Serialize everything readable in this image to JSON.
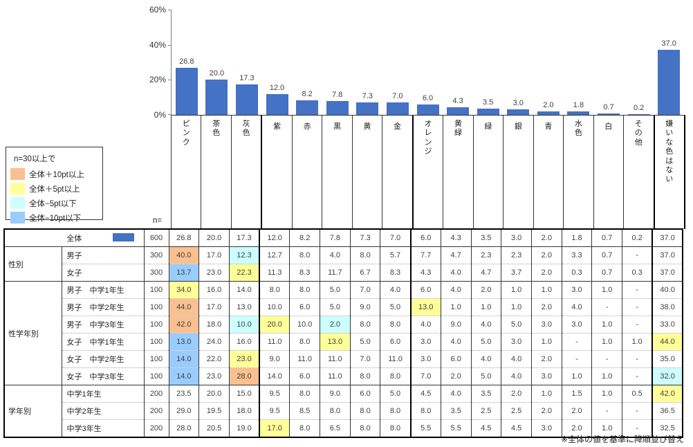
{
  "chart_data": {
    "type": "bar",
    "title": "",
    "xlabel": "",
    "ylabel": "",
    "categories": [
      "ピンク",
      "茶色",
      "灰色",
      "紫",
      "赤",
      "黒",
      "黄",
      "金",
      "オレンジ",
      "黄緑",
      "緑",
      "銀",
      "青",
      "水色",
      "白",
      "その他",
      "嫌いな色はない"
    ],
    "values": [
      26.8,
      20.0,
      17.3,
      12.0,
      8.2,
      7.8,
      7.3,
      7.0,
      6.0,
      4.3,
      3.5,
      3.0,
      2.0,
      1.8,
      0.7,
      0.2,
      37.0
    ],
    "value_labels": [
      "26.8",
      "20.0",
      "17.3",
      "12.0",
      "8.2",
      "7.8",
      "7.3",
      "7.0",
      "6.0",
      "4.3",
      "3.5",
      "3.0",
      "2.0",
      "1.8",
      "0.7",
      "0.2",
      "37.0"
    ],
    "y_ticks_top_to_bottom": [
      "60%",
      "40%",
      "20%",
      "0%"
    ],
    "ylim": [
      0,
      60
    ],
    "grid": false,
    "legend_position": "none",
    "bar_color": "#4472C4",
    "thick_separators_after_index": [
      2,
      7,
      15
    ]
  },
  "legend": {
    "title": "n=30以上で",
    "colors": {
      "plus10": "#FAC090",
      "plus5": "#FFFF99",
      "minus5": "#CCFFFF",
      "minus10": "#99CCFF"
    },
    "items": [
      {
        "key": "plus10",
        "label": "全体＋10pt以上",
        "color": "#FAC090"
      },
      {
        "key": "plus5",
        "label": "全体＋5pt以上",
        "color": "#FFFF99"
      },
      {
        "key": "minus5",
        "label": "全体−5pt以下",
        "color": "#CCFFFF"
      },
      {
        "key": "minus10",
        "label": "全体−10pt以下",
        "color": "#99CCFF"
      }
    ]
  },
  "table": {
    "n_label": "n=",
    "series_color": "#4472C4",
    "total_row": {
      "label": "全体",
      "n": "600",
      "values": [
        "26.8",
        "20.0",
        "17.3",
        "12.0",
        "8.2",
        "7.8",
        "7.3",
        "7.0",
        "6.0",
        "4.3",
        "3.5",
        "3.0",
        "2.0",
        "1.8",
        "0.7",
        "0.2",
        "37.0"
      ],
      "hl": {}
    },
    "groups": [
      {
        "name": "性別",
        "rows": [
          {
            "label": "男子",
            "n": "300",
            "values": [
              "40.0",
              "17.0",
              "12.3",
              "12.7",
              "8.0",
              "4.0",
              "8.0",
              "5.7",
              "7.7",
              "4.7",
              "2.3",
              "2.3",
              "2.0",
              "3.3",
              "0.7",
              "-",
              "37.0"
            ],
            "hl": {
              "0": "plus10",
              "2": "minus5"
            }
          },
          {
            "label": "女子",
            "n": "300",
            "values": [
              "13.7",
              "23.0",
              "22.3",
              "11.3",
              "8.3",
              "11.7",
              "6.7",
              "8.3",
              "4.3",
              "4.0",
              "4.7",
              "3.7",
              "2.0",
              "0.3",
              "0.7",
              "0.3",
              "37.0"
            ],
            "hl": {
              "0": "minus10",
              "2": "plus5"
            }
          }
        ]
      },
      {
        "name": "性学年別",
        "rows": [
          {
            "label": "男子　中学1年生",
            "n": "100",
            "values": [
              "34.0",
              "16.0",
              "14.0",
              "8.0",
              "8.0",
              "5.0",
              "7.0",
              "4.0",
              "6.0",
              "4.0",
              "2.0",
              "1.0",
              "1.0",
              "3.0",
              "1.0",
              "-",
              "40.0"
            ],
            "hl": {
              "0": "plus5"
            }
          },
          {
            "label": "男子　中学2年生",
            "n": "100",
            "values": [
              "44.0",
              "17.0",
              "13.0",
              "10.0",
              "6.0",
              "5.0",
              "9.0",
              "5.0",
              "13.0",
              "1.0",
              "1.0",
              "1.0",
              "2.0",
              "4.0",
              "-",
              "-",
              "38.0"
            ],
            "hl": {
              "0": "plus10",
              "8": "plus5"
            }
          },
          {
            "label": "男子　中学3年生",
            "n": "100",
            "values": [
              "42.0",
              "18.0",
              "10.0",
              "20.0",
              "10.0",
              "2.0",
              "8.0",
              "8.0",
              "4.0",
              "9.0",
              "4.0",
              "5.0",
              "3.0",
              "3.0",
              "1.0",
              "-",
              "33.0"
            ],
            "hl": {
              "0": "plus10",
              "2": "minus5",
              "3": "plus5",
              "5": "minus5"
            }
          },
          {
            "label": "女子　中学1年生",
            "n": "100",
            "values": [
              "13.0",
              "24.0",
              "16.0",
              "11.0",
              "8.0",
              "13.0",
              "5.0",
              "6.0",
              "3.0",
              "4.0",
              "5.0",
              "3.0",
              "1.0",
              "-",
              "1.0",
              "1.0",
              "44.0"
            ],
            "hl": {
              "0": "minus10",
              "5": "plus5",
              "16": "plus5"
            }
          },
          {
            "label": "女子　中学2年生",
            "n": "100",
            "values": [
              "14.0",
              "22.0",
              "23.0",
              "9.0",
              "11.0",
              "11.0",
              "7.0",
              "11.0",
              "3.0",
              "6.0",
              "4.0",
              "4.0",
              "2.0",
              "-",
              "-",
              "-",
              "35.0"
            ],
            "hl": {
              "0": "minus10",
              "2": "plus5"
            }
          },
          {
            "label": "女子　中学3年生",
            "n": "100",
            "values": [
              "14.0",
              "23.0",
              "28.0",
              "14.0",
              "6.0",
              "11.0",
              "8.0",
              "8.0",
              "7.0",
              "2.0",
              "5.0",
              "4.0",
              "3.0",
              "1.0",
              "1.0",
              "-",
              "32.0"
            ],
            "hl": {
              "0": "minus10",
              "2": "plus10",
              "16": "minus5"
            }
          }
        ]
      },
      {
        "name": "学年別",
        "rows": [
          {
            "label": "中学1年生",
            "n": "200",
            "values": [
              "23.5",
              "20.0",
              "15.0",
              "9.5",
              "8.0",
              "9.0",
              "6.0",
              "5.0",
              "4.5",
              "4.0",
              "3.5",
              "2.0",
              "1.0",
              "1.5",
              "1.0",
              "0.5",
              "42.0"
            ],
            "hl": {
              "16": "plus5"
            }
          },
          {
            "label": "中学2年生",
            "n": "200",
            "values": [
              "29.0",
              "19.5",
              "18.0",
              "9.5",
              "8.5",
              "8.0",
              "8.0",
              "8.0",
              "8.0",
              "3.5",
              "2.5",
              "2.5",
              "2.0",
              "2.0",
              "-",
              "-",
              "36.5"
            ],
            "hl": {}
          },
          {
            "label": "中学3年生",
            "n": "200",
            "values": [
              "28.0",
              "20.5",
              "19.0",
              "17.0",
              "8.0",
              "6.5",
              "8.0",
              "8.0",
              "5.5",
              "5.5",
              "4.5",
              "4.5",
              "3.0",
              "2.0",
              "1.0",
              "-",
              "32.5"
            ],
            "hl": {
              "3": "plus5"
            }
          }
        ]
      }
    ]
  },
  "footnote": "※全体の値を基準に降順並び替え"
}
